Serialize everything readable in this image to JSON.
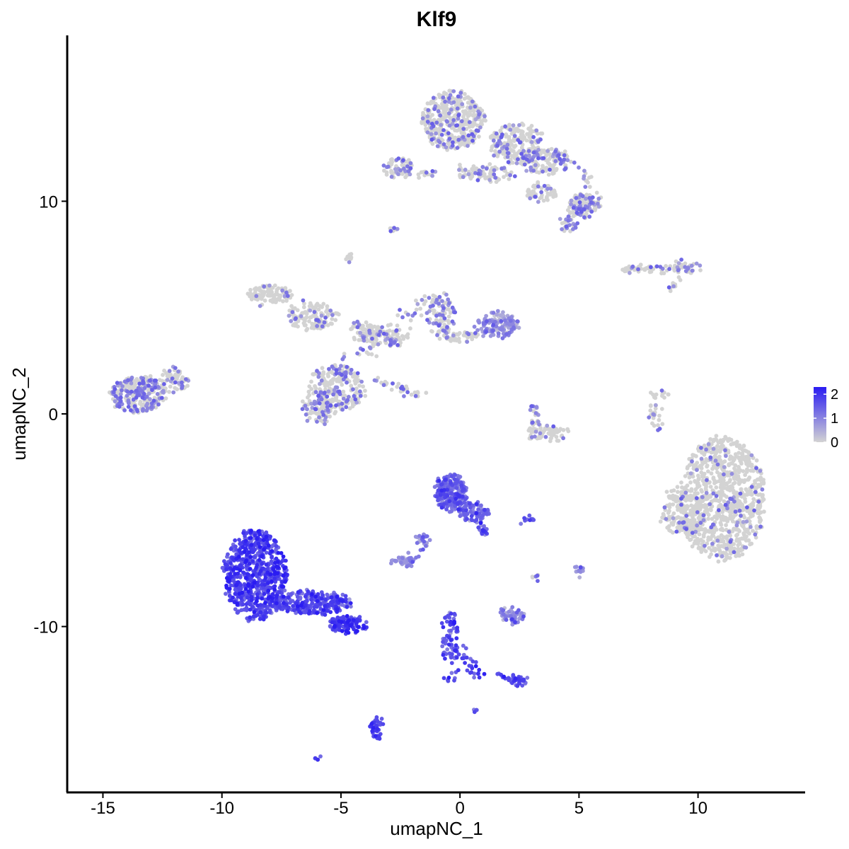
{
  "chart_data": {
    "type": "scatter",
    "title": "Klf9",
    "xlabel": "umapNC_1",
    "ylabel": "umapNC_2",
    "xlim": [
      -16.5,
      14.5
    ],
    "ylim": [
      -17.8,
      17.8
    ],
    "x_ticks": [
      -15,
      -10,
      -5,
      0,
      5,
      10
    ],
    "x_tick_labels": [
      "-15",
      "-10",
      "-5",
      "0",
      "5",
      "10"
    ],
    "y_ticks": [
      -10,
      0,
      10
    ],
    "y_tick_labels": [
      "-10",
      "0",
      "10"
    ],
    "grid": false,
    "color_scale": {
      "low_color": "#d3d3d3",
      "high_color": "#2a1cf2",
      "min": 0,
      "max": 2.3,
      "ticks": [
        0,
        1,
        2
      ],
      "tick_labels": [
        "0",
        "1",
        "2"
      ],
      "legend_position": "right"
    },
    "clusters": [
      {
        "cx": 11,
        "cy": -4,
        "rx": 1.8,
        "ry": 2.9,
        "n": 900,
        "expr": 0.12,
        "shape": "blob"
      },
      {
        "cx": 9.3,
        "cy": -4.6,
        "rx": 0.9,
        "ry": 1.2,
        "n": 160,
        "expr": 0.12,
        "shape": "blob"
      },
      {
        "cx": -8.6,
        "cy": -7.6,
        "rx": 1.35,
        "ry": 2.1,
        "n": 650,
        "expr": 1.75,
        "shape": "blob"
      },
      {
        "cx": -6.2,
        "cy": -8.9,
        "rx": 1.6,
        "ry": 0.55,
        "n": 280,
        "expr": 1.6,
        "shape": "blob"
      },
      {
        "cx": -4.7,
        "cy": -9.9,
        "rx": 0.8,
        "ry": 0.35,
        "n": 110,
        "expr": 1.8,
        "shape": "blob"
      },
      {
        "cx": -0.4,
        "cy": -3.7,
        "rx": 0.65,
        "ry": 0.9,
        "n": 240,
        "expr": 1.35,
        "shape": "blob"
      },
      {
        "cx": 0.6,
        "cy": -4.6,
        "rx": 0.6,
        "ry": 0.5,
        "n": 80,
        "expr": 1.3,
        "shape": "blob"
      },
      {
        "cx": 1.0,
        "cy": -5.4,
        "rx": 0.2,
        "ry": 0.35,
        "n": 18,
        "expr": 1.4,
        "shape": "blob"
      },
      {
        "cx": -13.5,
        "cy": 0.9,
        "rx": 1.2,
        "ry": 0.85,
        "n": 280,
        "expr": 0.55,
        "shape": "blob"
      },
      {
        "cx": -12.0,
        "cy": 1.6,
        "rx": 0.6,
        "ry": 0.55,
        "n": 60,
        "expr": 0.45,
        "shape": "blob"
      },
      {
        "cx": -0.3,
        "cy": 13.8,
        "rx": 1.3,
        "ry": 1.4,
        "n": 420,
        "expr": 0.3,
        "shape": "blob"
      },
      {
        "cx": 2.4,
        "cy": 12.7,
        "rx": 1.2,
        "ry": 0.9,
        "n": 200,
        "expr": 0.3,
        "shape": "blob"
      },
      {
        "cx": 3.6,
        "cy": 11.9,
        "rx": 1.1,
        "ry": 0.6,
        "n": 140,
        "expr": 0.35,
        "shape": "blob"
      },
      {
        "cx": 5.2,
        "cy": 9.8,
        "rx": 0.7,
        "ry": 0.55,
        "n": 120,
        "expr": 0.55,
        "shape": "blob"
      },
      {
        "cx": 4.6,
        "cy": 8.9,
        "rx": 0.35,
        "ry": 0.35,
        "n": 30,
        "expr": 0.6,
        "shape": "blob"
      },
      {
        "cx": 1.0,
        "cy": 11.3,
        "rx": 1.2,
        "ry": 0.4,
        "n": 90,
        "expr": 0.3,
        "shape": "blob"
      },
      {
        "cx": 3.4,
        "cy": 10.4,
        "rx": 0.6,
        "ry": 0.45,
        "n": 50,
        "expr": 0.35,
        "shape": "blob"
      },
      {
        "cx": -2.6,
        "cy": 11.6,
        "rx": 0.6,
        "ry": 0.5,
        "n": 70,
        "expr": 0.4,
        "shape": "blob"
      },
      {
        "cx": -1.4,
        "cy": 11.3,
        "rx": 0.4,
        "ry": 0.15,
        "n": 14,
        "expr": 0.3,
        "shape": "blob"
      },
      {
        "cx": -8.0,
        "cy": 5.6,
        "rx": 0.9,
        "ry": 0.45,
        "n": 110,
        "expr": 0.1,
        "shape": "blob"
      },
      {
        "cx": -6.2,
        "cy": 4.6,
        "rx": 1.1,
        "ry": 0.65,
        "n": 130,
        "expr": 0.2,
        "shape": "blob"
      },
      {
        "cx": -4.0,
        "cy": 3.9,
        "rx": 0.7,
        "ry": 0.4,
        "n": 60,
        "expr": 0.3,
        "shape": "blob"
      },
      {
        "cx": -5.2,
        "cy": 1.2,
        "rx": 1.3,
        "ry": 1.1,
        "n": 220,
        "expr": 0.45,
        "shape": "blob"
      },
      {
        "cx": -6.0,
        "cy": 0.2,
        "rx": 0.7,
        "ry": 0.6,
        "n": 70,
        "expr": 0.5,
        "shape": "blob"
      },
      {
        "cx": -3.2,
        "cy": 3.6,
        "rx": 1.0,
        "ry": 0.4,
        "n": 70,
        "expr": 0.45,
        "shape": "blob"
      },
      {
        "cx": -0.8,
        "cy": 4.7,
        "rx": 0.6,
        "ry": 1.0,
        "n": 90,
        "expr": 0.55,
        "shape": "blob"
      },
      {
        "cx": 1.6,
        "cy": 4.2,
        "rx": 0.9,
        "ry": 0.55,
        "n": 130,
        "expr": 0.75,
        "shape": "blob"
      },
      {
        "cx": 0.0,
        "cy": 3.6,
        "rx": 0.9,
        "ry": 0.25,
        "n": 40,
        "expr": 0.35,
        "shape": "blob"
      },
      {
        "cx": 8.0,
        "cy": 6.8,
        "rx": 1.2,
        "ry": 0.18,
        "n": 50,
        "expr": 0.2,
        "shape": "blob"
      },
      {
        "cx": 9.5,
        "cy": 6.9,
        "rx": 0.7,
        "ry": 0.25,
        "n": 40,
        "expr": 0.55,
        "shape": "blob"
      },
      {
        "cx": 3.7,
        "cy": -0.9,
        "rx": 0.9,
        "ry": 0.3,
        "n": 70,
        "expr": 0.15,
        "shape": "blob"
      },
      {
        "cx": 3.1,
        "cy": -0.2,
        "rx": 0.2,
        "ry": 0.7,
        "n": 25,
        "expr": 0.35,
        "shape": "blob"
      },
      {
        "cx": 8.1,
        "cy": 0.2,
        "rx": 0.2,
        "ry": 0.8,
        "n": 25,
        "expr": 0.2,
        "shape": "blob"
      },
      {
        "cx": -2.4,
        "cy": -6.9,
        "rx": 0.5,
        "ry": 0.2,
        "n": 45,
        "expr": 0.8,
        "shape": "blob"
      },
      {
        "cx": -1.6,
        "cy": -5.9,
        "rx": 0.35,
        "ry": 0.35,
        "n": 18,
        "expr": 1.0,
        "shape": "blob"
      },
      {
        "cx": 2.2,
        "cy": -9.5,
        "rx": 0.5,
        "ry": 0.35,
        "n": 55,
        "expr": 0.85,
        "shape": "blob"
      },
      {
        "cx": 2.4,
        "cy": -12.5,
        "rx": 0.35,
        "ry": 0.18,
        "n": 30,
        "expr": 1.6,
        "shape": "blob"
      },
      {
        "cx": -3.5,
        "cy": -14.8,
        "rx": 0.25,
        "ry": 0.55,
        "n": 40,
        "expr": 1.7,
        "shape": "blob"
      },
      {
        "cx": -0.4,
        "cy": -10.6,
        "rx": 0.35,
        "ry": 1.3,
        "n": 55,
        "expr": 1.6,
        "shape": "blob"
      },
      {
        "cx": 5.0,
        "cy": -7.3,
        "rx": 0.15,
        "ry": 0.3,
        "n": 12,
        "expr": 0.8,
        "shape": "blob"
      },
      {
        "cx": 2.8,
        "cy": -5.0,
        "rx": 0.3,
        "ry": 0.1,
        "n": 10,
        "expr": 1.5,
        "shape": "blob"
      },
      {
        "cx": -2.9,
        "cy": 8.7,
        "rx": 0.15,
        "ry": 0.12,
        "n": 8,
        "expr": 0.3,
        "shape": "blob"
      },
      {
        "cx": -4.6,
        "cy": 7.4,
        "rx": 0.15,
        "ry": 0.15,
        "n": 10,
        "expr": 0.2,
        "shape": "blob"
      },
      {
        "cx": -6.0,
        "cy": -16.2,
        "rx": 0.1,
        "ry": 0.08,
        "n": 5,
        "expr": 1.5,
        "shape": "blob"
      },
      {
        "cx": 0.6,
        "cy": -14.0,
        "rx": 0.08,
        "ry": 0.08,
        "n": 4,
        "expr": 1.6,
        "shape": "blob"
      },
      {
        "cx": 3.2,
        "cy": -7.7,
        "rx": 0.15,
        "ry": 0.15,
        "n": 6,
        "expr": 0.6,
        "shape": "blob"
      },
      {
        "x0": -5.0,
        "y0": 2.0,
        "x1": -1.2,
        "y1": 5.5,
        "n": 60,
        "expr": 0.4,
        "spread": 0.22,
        "shape": "line"
      },
      {
        "x0": -3.6,
        "y0": 1.6,
        "x1": -1.5,
        "y1": 0.8,
        "n": 30,
        "expr": 0.4,
        "spread": 0.12,
        "shape": "line"
      },
      {
        "x0": -2.0,
        "y0": -7.0,
        "x1": -1.5,
        "y1": -5.7,
        "n": 12,
        "expr": 1.0,
        "spread": 0.15,
        "shape": "line"
      },
      {
        "x0": -0.6,
        "y0": -9.5,
        "x1": 0.8,
        "y1": -12.5,
        "n": 35,
        "expr": 1.6,
        "spread": 0.15,
        "shape": "line"
      },
      {
        "x0": -0.6,
        "y0": -12.5,
        "x1": 0.4,
        "y1": -12.0,
        "n": 10,
        "expr": 1.6,
        "spread": 0.1,
        "shape": "line"
      },
      {
        "x0": 1.6,
        "y0": -12.2,
        "x1": 2.6,
        "y1": -12.7,
        "n": 15,
        "expr": 1.6,
        "spread": 0.1,
        "shape": "line"
      },
      {
        "x0": 8.3,
        "y0": -0.7,
        "x1": 8.6,
        "y1": 1.2,
        "n": 14,
        "expr": 0.2,
        "spread": 0.1,
        "shape": "line"
      },
      {
        "x0": 5.1,
        "y0": 11.5,
        "x1": 5.9,
        "y1": 9.6,
        "n": 20,
        "expr": 0.5,
        "spread": 0.15,
        "shape": "line"
      },
      {
        "x0": 8.7,
        "y0": 5.8,
        "x1": 9.3,
        "y1": 6.4,
        "n": 10,
        "expr": 0.35,
        "spread": 0.08,
        "shape": "line"
      }
    ]
  }
}
